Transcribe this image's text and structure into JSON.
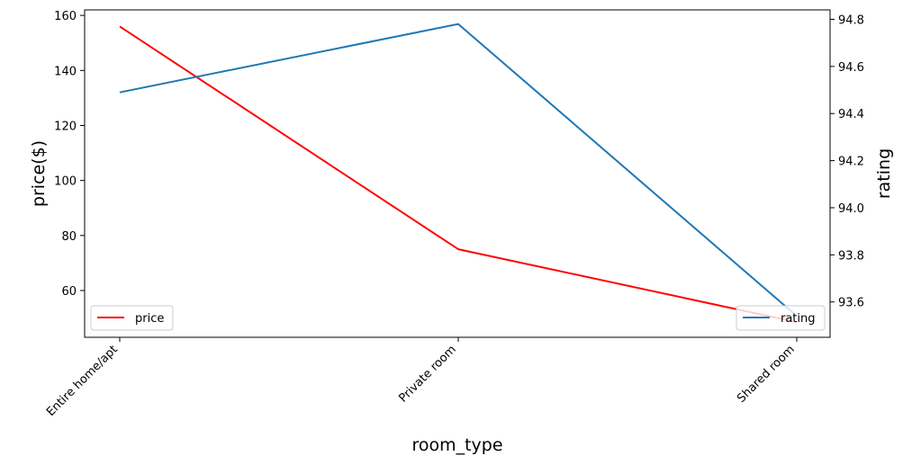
{
  "chart_data": {
    "type": "line",
    "categories": [
      "Entire home/apt",
      "Private room",
      "Shared room"
    ],
    "xlabel": "room_type",
    "ylabel_left": "price($)",
    "ylabel_right": "rating",
    "y_left": {
      "lim": [
        43,
        162
      ],
      "ticks": [
        60,
        80,
        100,
        120,
        140,
        160
      ]
    },
    "y_right": {
      "lim": [
        93.45,
        94.84
      ],
      "ticks": [
        "93.6",
        "93.8",
        "94.0",
        "94.2",
        "94.4",
        "94.6",
        "94.8"
      ]
    },
    "series": [
      {
        "name": "price",
        "axis": "left",
        "color": "#ff0000",
        "values": [
          156.0,
          75.0,
          48.5
        ]
      },
      {
        "name": "rating",
        "axis": "right",
        "color": "#1f77b4",
        "values": [
          94.49,
          94.78,
          93.54
        ]
      }
    ],
    "legends": [
      {
        "series": "price",
        "placement": "lower-left"
      },
      {
        "series": "rating",
        "placement": "lower-right"
      }
    ],
    "grid": false
  }
}
